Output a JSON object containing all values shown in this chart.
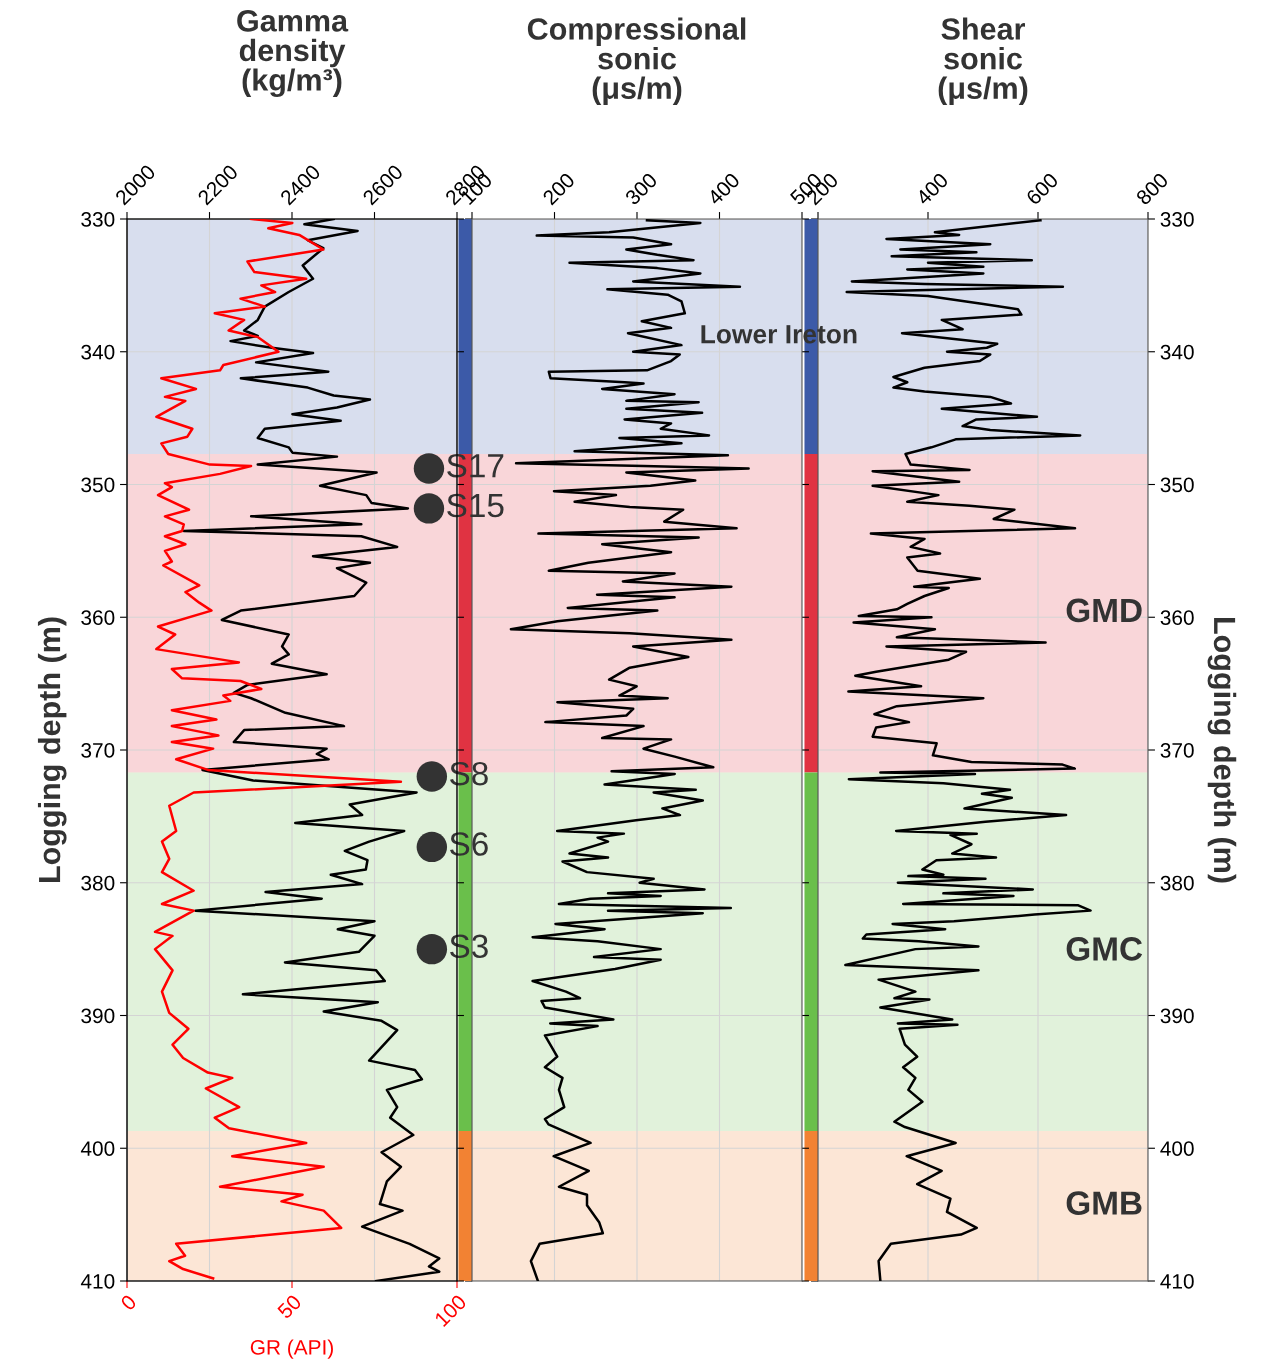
{
  "chart_data": [
    {
      "type": "line",
      "xlabel": "Gamma\ndensity\n(kg/m³)",
      "x2label": "GR (API)",
      "ylabel": "Logging depth (m)",
      "xlim": [
        2000,
        2800
      ],
      "xticks": [
        2000,
        2200,
        2400,
        2600,
        2800
      ],
      "x2lim": [
        0,
        100
      ],
      "x2ticks": [
        0,
        50,
        100
      ],
      "ylim": [
        410,
        330
      ],
      "yticks": [
        330,
        340,
        350,
        360,
        370,
        380,
        390,
        400,
        410
      ],
      "grid": true,
      "bands": [
        {
          "axis": "y",
          "from": 330,
          "to": 347.7,
          "color": "#3c5aa8"
        },
        {
          "axis": "y",
          "from": 347.7,
          "to": 371.7,
          "color": "#e03342"
        },
        {
          "axis": "y",
          "from": 371.7,
          "to": 398.7,
          "color": "#6abf4b"
        },
        {
          "axis": "y",
          "from": 398.7,
          "to": 410,
          "color": "#f28233"
        }
      ],
      "series": [
        {
          "color": "#000000",
          "values": [
            330.0,
            330.4,
            330.9,
            331.6,
            332.2,
            333.5,
            334.5,
            335.5,
            336.6,
            337.6,
            338.4,
            338.8,
            339.2,
            339.7,
            340.1,
            340.8,
            341.5,
            342.0,
            342.7,
            343.3,
            343.6,
            344.2,
            344.7,
            345.2,
            345.8,
            346.5,
            347.2,
            347.6,
            347.9,
            348.5,
            349.1,
            350.1,
            350.8,
            351.4,
            351.8,
            352.4,
            353.0,
            353.5,
            353.9,
            354.7,
            355.4,
            355.9,
            356.3,
            357.4,
            358.4,
            359.5,
            360.2,
            361.3,
            362.2,
            362.8,
            363.5,
            364.3,
            365.1,
            365.7,
            366.1,
            367.2,
            368.2,
            368.5,
            369.4,
            369.9,
            370.3,
            370.7,
            371.5,
            372.3,
            372.8,
            373.2,
            374.1,
            374.9,
            375.5,
            376.1,
            376.9,
            377.6,
            378.3,
            379.0,
            379.4,
            380.1,
            380.7,
            381.2,
            382.1,
            382.9,
            383.5,
            384.0,
            385.2,
            386.0,
            386.6,
            387.4,
            388.4,
            389.0,
            389.7,
            390.4,
            391.1,
            393.4,
            394.1,
            394.8,
            395.6,
            396.9,
            397.7,
            399.0,
            400.3,
            401.4,
            402.5,
            404.2,
            404.7,
            405.9,
            407.2,
            408.3,
            408.9,
            409.3,
            410.0
          ],
          "x": [
            2501,
            2430,
            2559,
            2438,
            2476,
            2426,
            2451,
            2392,
            2334,
            2317,
            2284,
            2317,
            2251,
            2351,
            2451,
            2313,
            2488,
            2276,
            2438,
            2501,
            2589,
            2509,
            2401,
            2518,
            2334,
            2317,
            2392,
            2401,
            2509,
            2317,
            2605,
            2468,
            2580,
            2593,
            2681,
            2301,
            2568,
            2138,
            2568,
            2655,
            2451,
            2589,
            2509,
            2580,
            2551,
            2276,
            2230,
            2392,
            2376,
            2392,
            2351,
            2484,
            2292,
            2259,
            2301,
            2384,
            2526,
            2284,
            2259,
            2484,
            2460,
            2489,
            2183,
            2306,
            2528,
            2702,
            2540,
            2570,
            2408,
            2672,
            2587,
            2528,
            2583,
            2579,
            2494,
            2570,
            2336,
            2472,
            2166,
            2600,
            2511,
            2600,
            2562,
            2383,
            2604,
            2625,
            2281,
            2608,
            2477,
            2617,
            2655,
            2587,
            2698,
            2715,
            2630,
            2655,
            2638,
            2694,
            2617,
            2664,
            2630,
            2613,
            2668,
            2570,
            2685,
            2757,
            2732,
            2757,
            2604
          ]
        },
        {
          "color": "#ff0000",
          "axis": "x2",
          "values": [
            330.0,
            330.3,
            330.7,
            331.2,
            332.3,
            333.2,
            334.0,
            334.5,
            335.0,
            335.5,
            336.0,
            336.6,
            337.1,
            337.6,
            338.4,
            338.9,
            340.0,
            341.0,
            341.4,
            342.0,
            342.8,
            343.4,
            343.7,
            344.9,
            345.8,
            346.4,
            346.9,
            347.7,
            348.5,
            348.6,
            349.2,
            349.9,
            350.2,
            350.8,
            351.9,
            352.4,
            353.0,
            353.5,
            353.9,
            354.5,
            355.0,
            355.8,
            356.1,
            357.6,
            358.1,
            358.9,
            359.5,
            360.7,
            361.3,
            362.4,
            363.4,
            363.9,
            364.6,
            364.8,
            365.4,
            365.9,
            366.3,
            367.0,
            367.7,
            368.2,
            368.9,
            369.4,
            369.9,
            370.7,
            371.5,
            372.4,
            373.2,
            374.2,
            376.1,
            376.9,
            378.2,
            379.2,
            380.6,
            381.6,
            382.1,
            383.7,
            384.0,
            385.0,
            386.6,
            388.2,
            389.8,
            391.0,
            392.2,
            393.2,
            394.3,
            394.7,
            395.5,
            396.9,
            397.7,
            398.5,
            399.6,
            400.6,
            401.4,
            402.9,
            403.5,
            404.0,
            404.7,
            406.0,
            407.2,
            408.1,
            408.5,
            409.1,
            409.8
          ],
          "x": [
            37.6,
            50.1,
            42.8,
            52.2,
            59.5,
            36.5,
            38.6,
            54.3,
            40.7,
            44.9,
            34.4,
            41.8,
            26.6,
            35.5,
            30.8,
            39.7,
            45.9,
            29.2,
            28.2,
            10.4,
            20.9,
            11.5,
            17.7,
            8.9,
            19.8,
            18.3,
            10.4,
            12.5,
            25.1,
            37.6,
            28.2,
            11.5,
            13.6,
            9.4,
            18.8,
            11.5,
            17.2,
            16.7,
            11.5,
            17.7,
            11.5,
            13.6,
            11.0,
            21.9,
            17.7,
            21.9,
            25.6,
            9.4,
            14.6,
            8.9,
            33.9,
            13.6,
            16.7,
            34.4,
            40.7,
            29.2,
            31.3,
            13.6,
            27.1,
            13.6,
            27.7,
            13.6,
            26.1,
            14.9,
            24.5,
            83.0,
            20.2,
            12.8,
            14.9,
            10.6,
            12.8,
            10.6,
            20.2,
            10.6,
            20.2,
            8.5,
            13.8,
            8.5,
            13.8,
            10.6,
            12.8,
            18.6,
            13.8,
            17.0,
            24.5,
            31.9,
            23.9,
            34.0,
            26.6,
            30.9,
            54.3,
            31.9,
            59.6,
            28.2,
            53.2,
            46.8,
            59.6,
            64.9,
            14.9,
            17.6,
            12.8,
            17.0,
            26.1
          ]
        },
        {
          "type": "scatter",
          "marker": "circle",
          "color": "#333333",
          "values": [
            348.8,
            351.8,
            372.0,
            377.3,
            385.0
          ],
          "x": [
            2732,
            2732,
            2739,
            2739,
            2739
          ],
          "value_labels": [
            "S17",
            "S15",
            "S8",
            "S6",
            "S3"
          ]
        }
      ]
    },
    {
      "type": "line",
      "xlabel": "Compressional\nsonic\n(μs/m)",
      "xlim": [
        100,
        500
      ],
      "xticks": [
        100,
        200,
        300,
        400,
        500
      ],
      "ylim": [
        410,
        330
      ],
      "yticks": [
        330,
        340,
        350,
        360,
        370,
        380,
        390,
        400,
        410
      ],
      "grid": true,
      "tick_labels": "x",
      "bands": [
        {
          "axis": "y",
          "from": 330,
          "to": 347.7,
          "color": "#3c5aa8",
          "label": "Lower Ireton"
        },
        {
          "axis": "y",
          "from": 347.7,
          "to": 371.7,
          "color": "#e03342"
        },
        {
          "axis": "y",
          "from": 371.7,
          "to": 398.7,
          "color": "#6abf4b"
        },
        {
          "axis": "y",
          "from": 398.7,
          "to": 410,
          "color": "#f28233"
        }
      ],
      "series": [
        {
          "color": "#000000",
          "values": [
            330.1,
            330.3,
            331.0,
            331.25,
            331.4,
            331.9,
            332.3,
            332.7,
            333.1,
            333.3,
            333.7,
            334.1,
            334.7,
            335.1,
            335.3,
            335.7,
            336.2,
            337.1,
            337.7,
            338.2,
            338.6,
            339.5,
            340.0,
            340.2,
            340.7,
            341.4,
            341.5,
            342.0,
            342.3,
            342.4,
            342.8,
            343.2,
            343.7,
            343.8,
            344.3,
            344.6,
            345.1,
            345.4,
            345.8,
            346.3,
            346.5,
            346.9,
            347.5,
            347.8,
            348.4,
            348.6,
            348.8,
            349.1,
            349.7,
            350.1,
            350.5,
            350.8,
            351.3,
            351.7,
            351.9,
            352.8,
            353.3,
            353.7,
            354.0,
            354.5,
            355.1,
            355.9,
            356.5,
            356.7,
            357.3,
            357.7,
            358.3,
            358.5,
            359.3,
            359.5,
            360.3,
            360.9,
            361.2,
            361.7,
            362.2,
            363.0,
            363.8,
            364.7,
            365.2,
            365.9,
            366.1,
            366.4,
            366.9,
            367.4,
            367.9,
            368.2,
            369.1,
            369.2,
            369.9,
            370.5,
            371.3,
            371.6,
            371.8,
            372.6,
            373.0,
            373.2,
            373.8,
            374.4,
            374.9,
            375.3,
            376.1,
            376.3,
            376.6,
            376.9,
            377.8,
            378.1,
            378.4,
            379.2,
            379.7,
            380.0,
            380.5,
            380.8,
            381.0,
            381.2,
            381.6,
            381.9,
            382.1,
            382.3,
            383.1,
            383.5,
            384.1,
            384.4,
            385.0,
            385.6,
            385.8,
            386.5,
            387.4,
            388.2,
            388.7,
            388.9,
            389.4,
            390.3,
            390.6,
            390.8,
            391.5,
            393.1,
            393.9,
            394.7,
            395.6,
            396.9,
            397.8,
            398.2,
            399.6,
            400.6,
            401.7,
            402.9,
            403.5,
            404.3,
            405.6,
            406.4,
            407.2,
            408.5,
            410.0
          ],
          "x": [
            312.1,
            376.8,
            266.2,
            178.5,
            295.4,
            341.3,
            287.1,
            324.6,
            368.5,
            218.2,
            324.6,
            376.8,
            295.4,
            424.8,
            264.1,
            337.2,
            353.9,
            358.0,
            305.8,
            341.3,
            289.1,
            353.9,
            295.4,
            351.8,
            341.3,
            312.1,
            193.1,
            195.2,
            285.0,
            307.9,
            257.8,
            345.5,
            287.1,
            374.7,
            287.1,
            378.9,
            285.0,
            341.3,
            328.8,
            387.3,
            278.7,
            353.9,
            224.4,
            410.2,
            153.4,
            307.9,
            435.3,
            287.1,
            370.6,
            316.3,
            199.4,
            274.5,
            224.4,
            291.2,
            356.0,
            333.0,
            420.7,
            180.6,
            374.7,
            257.8,
            341.3,
            241.1,
            193.1,
            345.5,
            282.9,
            414.4,
            251.6,
            345.5,
            216.1,
            324.6,
            203.5,
            147.2,
            291.2,
            414.4,
            295.4,
            362.2,
            291.2,
            266.2,
            299.6,
            278.7,
            337.2,
            203.5,
            295.4,
            287.1,
            188.9,
            307.9,
            257.8,
            341.3,
            307.9,
            345.7,
            392.5,
            269.2,
            345.7,
            260.7,
            371.2,
            320.2,
            379.7,
            330.8,
            352.1,
            298.9,
            203.3,
            284.1,
            252.2,
            264.9,
            218.2,
            264.9,
            209.7,
            239.4,
            320.2,
            303.2,
            381.8,
            264.9,
            328.7,
            243.7,
            205.4,
            413.7,
            264.9,
            379.7,
            201.2,
            260.7,
            173.5,
            252.2,
            328.7,
            247.9,
            328.7,
            273.4,
            173.5,
            213.9,
            230.9,
            184.2,
            188.4,
            271.3,
            194.8,
            252.2,
            188.4,
            203.3,
            188.4,
            209.7,
            205.4,
            211.8,
            188.4,
            192.7,
            243.7,
            199.0,
            241.6,
            205.4,
            239.4,
            239.4,
            254.3,
            258.6,
            182.0,
            171.4,
            179.9
          ]
        }
      ]
    },
    {
      "type": "line",
      "xlabel": "Shear\nsonic\n(μs/m)",
      "y2label": "Logging depth (m)",
      "xlim": [
        200,
        800
      ],
      "xticks": [
        200,
        400,
        600,
        800
      ],
      "y2lim": [
        410,
        330
      ],
      "y2ticks": [
        330,
        340,
        350,
        360,
        370,
        380,
        390,
        400,
        410
      ],
      "grid": true,
      "bands": [
        {
          "axis": "y2",
          "from": 330,
          "to": 347.7,
          "color": "#3c5aa8"
        },
        {
          "axis": "y2",
          "from": 347.7,
          "to": 371.7,
          "color": "#e03342",
          "label": "GMD"
        },
        {
          "axis": "y2",
          "from": 371.7,
          "to": 398.7,
          "color": "#6abf4b",
          "label": "GMC"
        },
        {
          "axis": "y2",
          "from": 398.7,
          "to": 410,
          "color": "#f28233",
          "label": "GMB"
        }
      ],
      "series": [
        {
          "color": "#000000",
          "axis": "y2",
          "values": [
            330.1,
            331.0,
            331.2,
            331.5,
            331.9,
            332.3,
            332.5,
            332.8,
            333.1,
            333.3,
            333.6,
            333.8,
            334.1,
            334.7,
            334.9,
            335.1,
            335.5,
            335.8,
            336.4,
            336.8,
            337.2,
            337.6,
            338.3,
            338.6,
            339.4,
            339.7,
            340.0,
            340.2,
            340.7,
            341.2,
            341.9,
            342.3,
            342.7,
            343.0,
            343.4,
            343.9,
            344.3,
            344.9,
            345.1,
            345.6,
            345.9,
            346.3,
            346.6,
            347.2,
            347.7,
            348.5,
            348.9,
            349.0,
            349.8,
            350.1,
            350.8,
            351.3,
            351.6,
            351.9,
            352.6,
            353.3,
            353.7,
            354.1,
            354.7,
            355.2,
            355.5,
            356.5,
            357.1,
            357.7,
            357.8,
            358.4,
            359.0,
            359.4,
            359.9,
            360.0,
            360.4,
            360.9,
            361.5,
            361.9,
            362.2,
            362.6,
            363.2,
            364.1,
            364.4,
            365.2,
            365.6,
            366.1,
            366.7,
            367.3,
            367.9,
            368.3,
            369.0,
            369.5,
            370.4,
            370.9,
            371.1,
            371.4,
            371.7,
            371.8,
            372.2,
            372.5,
            373.0,
            373.3,
            373.6,
            374.4,
            374.9,
            375.4,
            376.1,
            376.3,
            376.4,
            377.1,
            377.8,
            378.1,
            378.3,
            379.0,
            379.4,
            379.5,
            379.7,
            380.0,
            380.5,
            380.8,
            381.0,
            381.6,
            381.7,
            382.1,
            382.4,
            382.9,
            383.1,
            383.5,
            383.9,
            384.2,
            384.4,
            384.8,
            385.0,
            386.2,
            386.6,
            387.3,
            388.2,
            388.7,
            388.8,
            389.4,
            390.3,
            390.6,
            390.7,
            391.0,
            392.2,
            393.1,
            393.9,
            394.7,
            395.6,
            396.5,
            398.0,
            398.4,
            399.6,
            400.6,
            401.7,
            402.7,
            403.8,
            404.8,
            406.0,
            406.5,
            407.2,
            408.5,
            410.0
          ],
          "x": [
            604.4,
            412.6,
            456.6,
            324.5,
            513.2,
            349.7,
            488.0,
            334.0,
            588.7,
            400.0,
            500.6,
            362.3,
            500.6,
            261.6,
            393.7,
            645.3,
            252.2,
            400.0,
            500.6,
            563.5,
            569.8,
            425.1,
            462.9,
            352.8,
            525.8,
            506.9,
            434.6,
            513.2,
            494.3,
            393.7,
            337.1,
            362.3,
            337.1,
            393.7,
            513.2,
            550.9,
            425.1,
            598.1,
            488.0,
            462.9,
            513.2,
            676.7,
            450.3,
            406.3,
            359.1,
            368.5,
            475.5,
            299.4,
            456.6,
            299.4,
            418.9,
            362.3,
            475.5,
            557.2,
            519.5,
            667.3,
            296.2,
            393.7,
            368.5,
            422.0,
            362.3,
            381.1,
            494.3,
            374.8,
            437.7,
            393.7,
            362.3,
            343.4,
            274.2,
            406.3,
            264.8,
            412.6,
            343.4,
            613.8,
            324.5,
            469.2,
            437.7,
            305.7,
            267.9,
            387.4,
            255.3,
            500.6,
            343.4,
            302.5,
            365.4,
            305.7,
            299.4,
            415.7,
            408.9,
            479.0,
            644.6,
            666.9,
            313.4,
            485.4,
            256.1,
            428.0,
            549.1,
            498.1,
            552.3,
            466.3,
            651.0,
            504.5,
            342.1,
            488.6,
            440.8,
            479.0,
            444.0,
            523.6,
            415.3,
            389.8,
            428.0,
            364.3,
            504.5,
            345.2,
            590.5,
            428.0,
            555.4,
            354.8,
            673.3,
            695.6,
            593.7,
            447.2,
            335.7,
            431.2,
            287.9,
            281.5,
            383.5,
            491.7,
            377.1,
            249.7,
            491.7,
            310.2,
            377.1,
            338.9,
            402.6,
            313.4,
            444.0,
            345.2,
            453.5,
            348.4,
            358.0,
            380.3,
            354.8,
            377.1,
            364.3,
            389.8,
            338.9,
            358.0,
            450.3,
            361.2,
            424.9,
            380.3,
            440.8,
            434.4,
            488.6,
            459.9,
            332.5,
            310.2,
            313.4
          ]
        }
      ]
    }
  ]
}
